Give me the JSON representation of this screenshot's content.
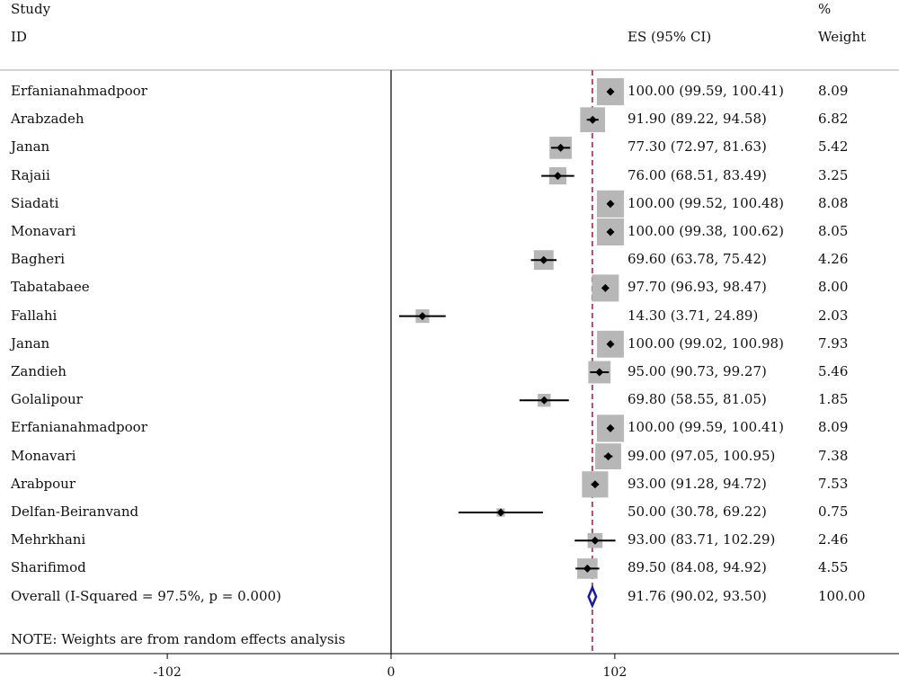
{
  "header": {
    "study_line1": "Study",
    "study_line2": "ID",
    "es_label": "ES (95% CI)",
    "weight_line1": "%",
    "weight_line2": "Weight"
  },
  "note": "NOTE: Weights are from random effects analysis",
  "chart_data": {
    "type": "forest",
    "xlabel": "",
    "ylabel": "",
    "x_ticks": [
      "-102",
      "0",
      "102"
    ],
    "x_range": [
      -102,
      102
    ],
    "null_line": 0,
    "overall_line": 91.76,
    "studies": [
      {
        "name": "Erfanianahmadpoor",
        "es": 100.0,
        "lo": 99.59,
        "hi": 100.41,
        "es_text": "100.00 (99.59, 100.41)",
        "weight": 8.09,
        "weight_text": "8.09"
      },
      {
        "name": "Arabzadeh",
        "es": 91.9,
        "lo": 89.22,
        "hi": 94.58,
        "es_text": "91.90 (89.22, 94.58)",
        "weight": 6.82,
        "weight_text": "6.82"
      },
      {
        "name": "Janan",
        "es": 77.3,
        "lo": 72.97,
        "hi": 81.63,
        "es_text": "77.30 (72.97, 81.63)",
        "weight": 5.42,
        "weight_text": "5.42"
      },
      {
        "name": "Rajaii",
        "es": 76.0,
        "lo": 68.51,
        "hi": 83.49,
        "es_text": "76.00 (68.51, 83.49)",
        "weight": 3.25,
        "weight_text": "3.25"
      },
      {
        "name": "Siadati",
        "es": 100.0,
        "lo": 99.52,
        "hi": 100.48,
        "es_text": "100.00 (99.52, 100.48)",
        "weight": 8.08,
        "weight_text": "8.08"
      },
      {
        "name": "Monavari",
        "es": 100.0,
        "lo": 99.38,
        "hi": 100.62,
        "es_text": "100.00 (99.38, 100.62)",
        "weight": 8.05,
        "weight_text": "8.05"
      },
      {
        "name": "Bagheri",
        "es": 69.6,
        "lo": 63.78,
        "hi": 75.42,
        "es_text": "69.60 (63.78, 75.42)",
        "weight": 4.26,
        "weight_text": "4.26"
      },
      {
        "name": "Tabatabaee",
        "es": 97.7,
        "lo": 96.93,
        "hi": 98.47,
        "es_text": "97.70 (96.93, 98.47)",
        "weight": 8.0,
        "weight_text": "8.00"
      },
      {
        "name": "Fallahi",
        "es": 14.3,
        "lo": 3.71,
        "hi": 24.89,
        "es_text": "14.30 (3.71, 24.89)",
        "weight": 2.03,
        "weight_text": "2.03"
      },
      {
        "name": "Janan",
        "es": 100.0,
        "lo": 99.02,
        "hi": 100.98,
        "es_text": "100.00 (99.02, 100.98)",
        "weight": 7.93,
        "weight_text": "7.93"
      },
      {
        "name": "Zandieh",
        "es": 95.0,
        "lo": 90.73,
        "hi": 99.27,
        "es_text": "95.00 (90.73, 99.27)",
        "weight": 5.46,
        "weight_text": "5.46"
      },
      {
        "name": "Golalipour",
        "es": 69.8,
        "lo": 58.55,
        "hi": 81.05,
        "es_text": "69.80 (58.55, 81.05)",
        "weight": 1.85,
        "weight_text": "1.85"
      },
      {
        "name": "Erfanianahmadpoor",
        "es": 100.0,
        "lo": 99.59,
        "hi": 100.41,
        "es_text": "100.00 (99.59, 100.41)",
        "weight": 8.09,
        "weight_text": "8.09"
      },
      {
        "name": "Monavari",
        "es": 99.0,
        "lo": 97.05,
        "hi": 100.95,
        "es_text": "99.00 (97.05, 100.95)",
        "weight": 7.38,
        "weight_text": "7.38"
      },
      {
        "name": "Arabpour",
        "es": 93.0,
        "lo": 91.28,
        "hi": 94.72,
        "es_text": "93.00 (91.28, 94.72)",
        "weight": 7.53,
        "weight_text": "7.53"
      },
      {
        "name": "Delfan-Beiranvand",
        "es": 50.0,
        "lo": 30.78,
        "hi": 69.22,
        "es_text": "50.00 (30.78, 69.22)",
        "weight": 0.75,
        "weight_text": "0.75"
      },
      {
        "name": "Mehrkhani",
        "es": 93.0,
        "lo": 83.71,
        "hi": 102.29,
        "es_text": "93.00 (83.71, 102.29)",
        "weight": 2.46,
        "weight_text": "2.46"
      },
      {
        "name": "Sharifimod",
        "es": 89.5,
        "lo": 84.08,
        "hi": 94.92,
        "es_text": "89.50 (84.08, 94.92)",
        "weight": 4.55,
        "weight_text": "4.55"
      }
    ],
    "overall": {
      "label": "Overall  (I-Squared = 97.5%, p = 0.000)",
      "es": 91.76,
      "lo": 90.02,
      "hi": 93.5,
      "es_text": "91.76 (90.02, 93.50)",
      "weight_text": "100.00"
    }
  },
  "colors": {
    "ci_line": "#000000",
    "weight_box": "#b7b7b7",
    "overall_line": "#b04a6a",
    "diamond": "#1a1aa0",
    "rule": "#bbbbbb"
  }
}
